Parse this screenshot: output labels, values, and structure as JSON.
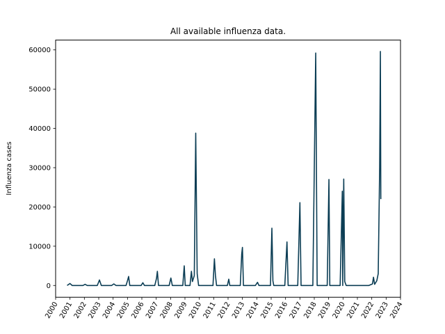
{
  "chart_data": {
    "type": "line",
    "title": "All available influenza data.",
    "xlabel": "",
    "ylabel": "Influenza cases",
    "xlim": [
      2000,
      2024
    ],
    "ylim": [
      -3000,
      62500
    ],
    "x_ticks": [
      "2000",
      "2001",
      "2002",
      "2003",
      "2004",
      "2005",
      "2006",
      "2007",
      "2008",
      "2009",
      "2010",
      "2011",
      "2012",
      "2013",
      "2014",
      "2015",
      "2016",
      "2017",
      "2018",
      "2019",
      "2020",
      "2021",
      "2022",
      "2023",
      "2024"
    ],
    "y_ticks": [
      0,
      10000,
      20000,
      30000,
      40000,
      50000,
      60000
    ],
    "y_tick_labels": [
      "0",
      "10000",
      "20000",
      "30000",
      "40000",
      "50000",
      "60000"
    ],
    "grid": false,
    "series_color": "#0b3d54",
    "series": [
      {
        "values": [
          [
            2000.8,
            0
          ],
          [
            2001.0,
            500
          ],
          [
            2001.15,
            0
          ],
          [
            2001.9,
            0
          ],
          [
            2002.05,
            300
          ],
          [
            2002.2,
            0
          ],
          [
            2002.9,
            0
          ],
          [
            2003.05,
            1400
          ],
          [
            2003.18,
            0
          ],
          [
            2003.9,
            0
          ],
          [
            2004.05,
            400
          ],
          [
            2004.2,
            0
          ],
          [
            2004.9,
            0
          ],
          [
            2005.0,
            1200
          ],
          [
            2005.08,
            2300
          ],
          [
            2005.16,
            0
          ],
          [
            2005.95,
            0
          ],
          [
            2006.07,
            700
          ],
          [
            2006.18,
            0
          ],
          [
            2006.9,
            0
          ],
          [
            2007.02,
            1800
          ],
          [
            2007.08,
            3600
          ],
          [
            2007.16,
            0
          ],
          [
            2007.9,
            0
          ],
          [
            2008.02,
            1900
          ],
          [
            2008.12,
            0
          ],
          [
            2008.85,
            0
          ],
          [
            2008.95,
            5000
          ],
          [
            2009.02,
            0
          ],
          [
            2009.35,
            0
          ],
          [
            2009.45,
            3600
          ],
          [
            2009.52,
            1000
          ],
          [
            2009.65,
            2500
          ],
          [
            2009.75,
            38800
          ],
          [
            2009.85,
            3000
          ],
          [
            2009.95,
            0
          ],
          [
            2010.95,
            0
          ],
          [
            2011.05,
            6800
          ],
          [
            2011.12,
            2600
          ],
          [
            2011.2,
            0
          ],
          [
            2011.95,
            0
          ],
          [
            2012.05,
            1600
          ],
          [
            2012.12,
            0
          ],
          [
            2012.85,
            0
          ],
          [
            2012.95,
            8000
          ],
          [
            2013.0,
            9700
          ],
          [
            2013.07,
            0
          ],
          [
            2013.9,
            0
          ],
          [
            2014.05,
            800
          ],
          [
            2014.15,
            0
          ],
          [
            2014.95,
            0
          ],
          [
            2015.05,
            14600
          ],
          [
            2015.12,
            1200
          ],
          [
            2015.18,
            0
          ],
          [
            2015.95,
            0
          ],
          [
            2016.1,
            11100
          ],
          [
            2016.18,
            0
          ],
          [
            2016.85,
            0
          ],
          [
            2017.0,
            21100
          ],
          [
            2017.08,
            0
          ],
          [
            2017.9,
            0
          ],
          [
            2018.1,
            59200
          ],
          [
            2018.2,
            0
          ],
          [
            2018.9,
            0
          ],
          [
            2019.02,
            27000
          ],
          [
            2019.08,
            0
          ],
          [
            2019.8,
            0
          ],
          [
            2019.95,
            24000
          ],
          [
            2019.98,
            0
          ],
          [
            2020.05,
            27100
          ],
          [
            2020.12,
            1000
          ],
          [
            2020.22,
            0
          ],
          [
            2021.8,
            0
          ],
          [
            2022.05,
            400
          ],
          [
            2022.12,
            2100
          ],
          [
            2022.2,
            300
          ],
          [
            2022.35,
            1200
          ],
          [
            2022.45,
            3000
          ],
          [
            2022.55,
            30000
          ],
          [
            2022.6,
            59600
          ],
          [
            2022.63,
            22000
          ]
        ]
      }
    ]
  }
}
